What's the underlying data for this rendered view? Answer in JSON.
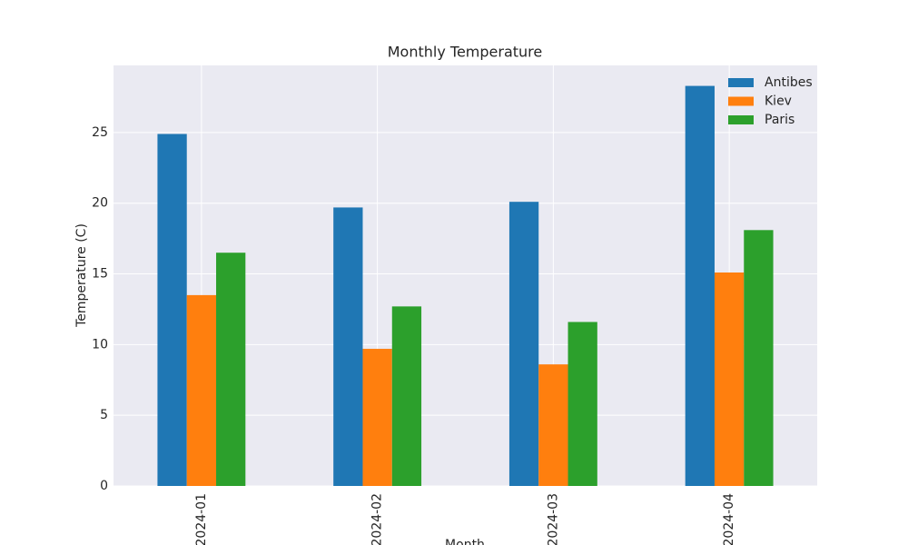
{
  "chart_data": {
    "type": "bar",
    "title": "Monthly Temperature",
    "x_label": "Month",
    "y_label": "Temperature (C)",
    "categories": [
      "2024-01",
      "2024-02",
      "2024-03",
      "2024-04"
    ],
    "series": [
      {
        "name": "Antibes",
        "color": "#1f77b4",
        "values": [
          24.9,
          19.7,
          20.1,
          28.3
        ]
      },
      {
        "name": "Kiev",
        "color": "#ff7f0e",
        "values": [
          13.5,
          9.7,
          8.6,
          15.1
        ]
      },
      {
        "name": "Paris",
        "color": "#2ca02c",
        "values": [
          16.5,
          12.7,
          11.6,
          18.1
        ]
      }
    ],
    "ylim": [
      0,
      29.75
    ],
    "yticks": [
      0,
      5,
      10,
      15,
      20,
      25
    ],
    "grid": true,
    "legend": "upper right"
  }
}
